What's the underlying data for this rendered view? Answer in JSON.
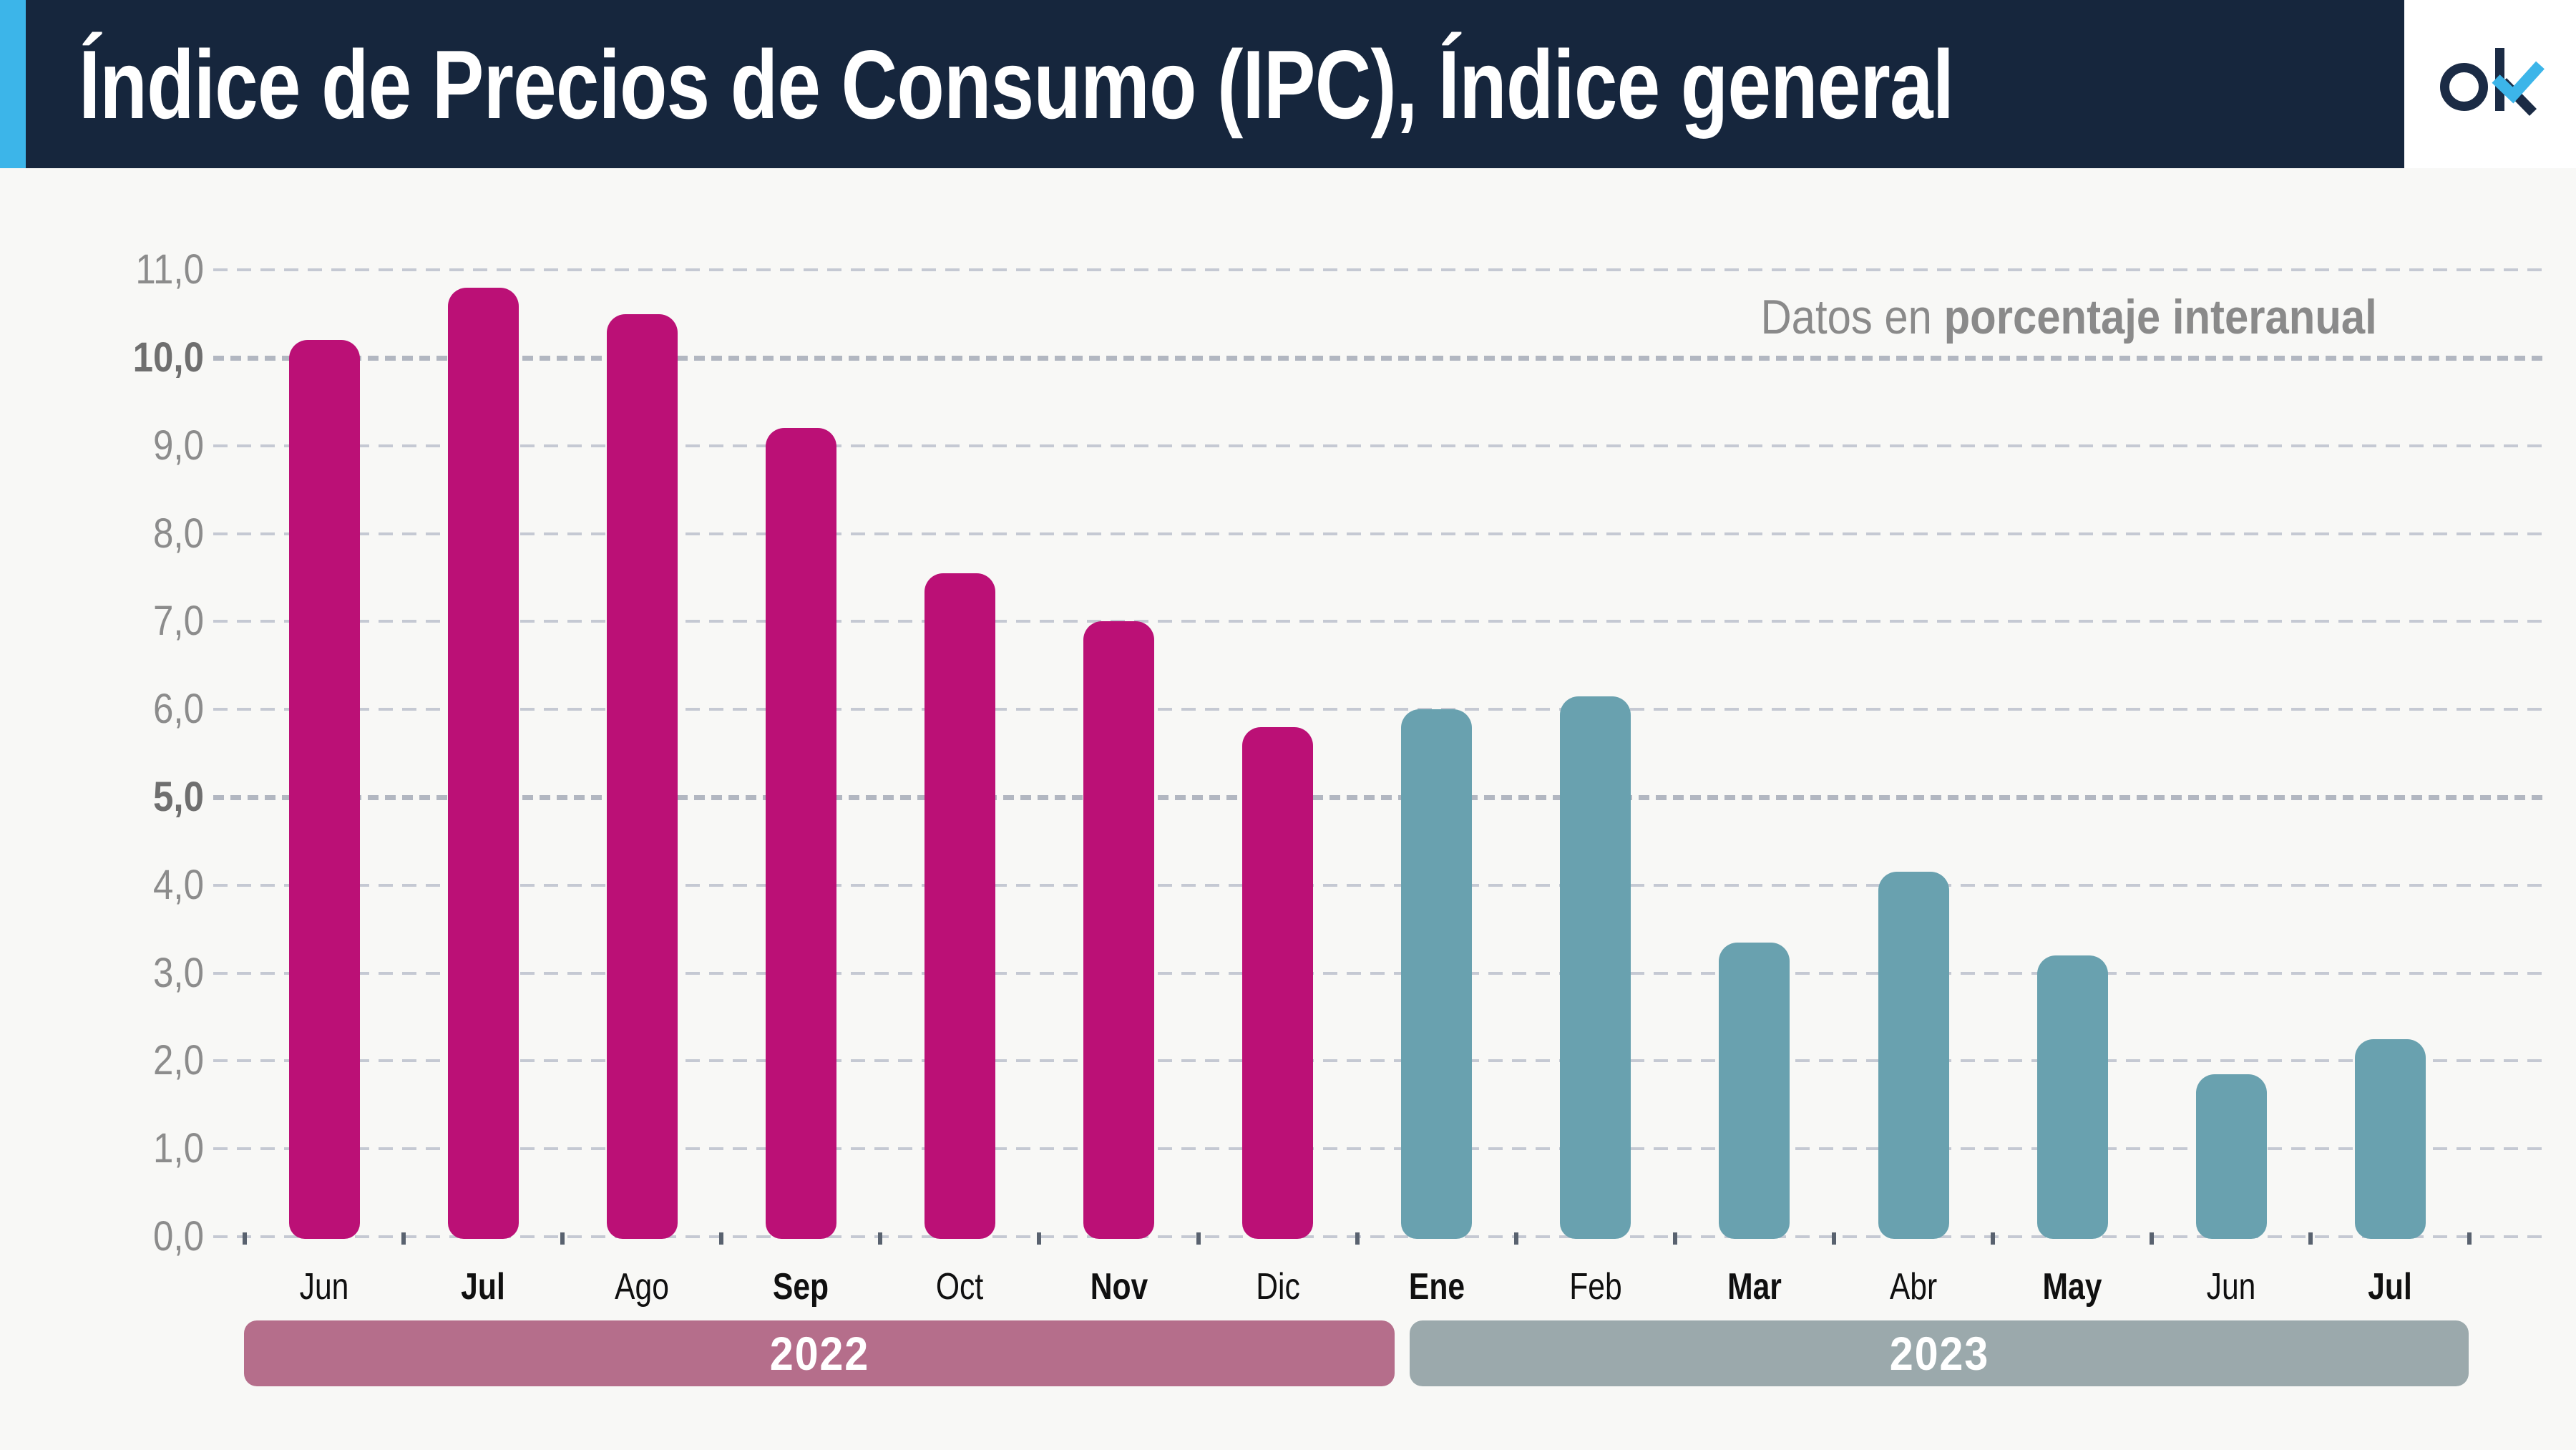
{
  "header": {
    "title": "Índice de Precios de Consumo (IPC), Índice general",
    "background": "#16263D",
    "accent_color": "#3CB5E9",
    "logo": {
      "name": "okdiario",
      "navy": "#1B2B45",
      "blue": "#3CB5E9",
      "box_color": "#FFFFFF"
    }
  },
  "annotation": {
    "prefix": "Datos en ",
    "bold_text": "porcentaje interanual",
    "color": "#8A8A8A"
  },
  "chart_data": {
    "type": "bar",
    "title": "Índice de Precios de Consumo (IPC), Índice general",
    "unit_note": "Datos en porcentaje interanual",
    "ylim": [
      0,
      11
    ],
    "y_tick_interval": 1,
    "y_tick_labels": [
      "0,0",
      "1,0",
      "2,0",
      "3,0",
      "4,0",
      "5,0",
      "6,0",
      "7,0",
      "8,0",
      "9,0",
      "10,0",
      "11,0"
    ],
    "bold_y_ticks": [
      5,
      10
    ],
    "grid": "horizontal-dashed",
    "legend": "none",
    "series": [
      {
        "name": "2022",
        "bar_color": "#BB1076",
        "band_color": "#B56E8B",
        "points": [
          {
            "month": "Jun",
            "value": 10.2,
            "bold_label": false
          },
          {
            "month": "Jul",
            "value": 10.8,
            "bold_label": true
          },
          {
            "month": "Ago",
            "value": 10.5,
            "bold_label": false
          },
          {
            "month": "Sep",
            "value": 9.2,
            "bold_label": true
          },
          {
            "month": "Oct",
            "value": 7.55,
            "bold_label": false
          },
          {
            "month": "Nov",
            "value": 7.0,
            "bold_label": true
          },
          {
            "month": "Dic",
            "value": 5.8,
            "bold_label": false
          }
        ]
      },
      {
        "name": "2023",
        "bar_color": "#69A1AF",
        "band_color": "#9BA9AC",
        "points": [
          {
            "month": "Ene",
            "value": 6.0,
            "bold_label": true
          },
          {
            "month": "Feb",
            "value": 6.15,
            "bold_label": false
          },
          {
            "month": "Mar",
            "value": 3.35,
            "bold_label": true
          },
          {
            "month": "Abr",
            "value": 4.15,
            "bold_label": false
          },
          {
            "month": "May",
            "value": 3.2,
            "bold_label": true
          },
          {
            "month": "Jun",
            "value": 1.85,
            "bold_label": false
          },
          {
            "month": "Jul",
            "value": 2.25,
            "bold_label": true
          }
        ]
      }
    ]
  }
}
